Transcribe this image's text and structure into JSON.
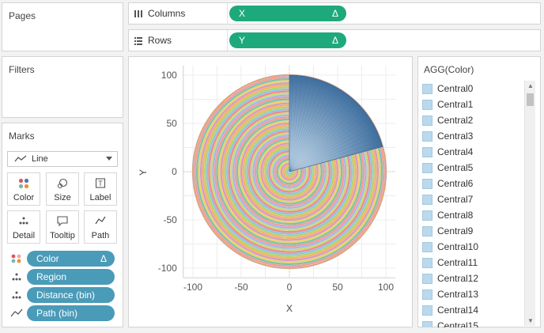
{
  "panels": {
    "pages_title": "Pages",
    "filters_title": "Filters",
    "marks_title": "Marks"
  },
  "shelves": {
    "columns": {
      "label": "Columns",
      "pill": "X",
      "pill_icon": "Δ"
    },
    "rows": {
      "label": "Rows",
      "pill": "Y",
      "pill_icon": "Δ"
    }
  },
  "marks": {
    "mark_type": "Line",
    "buttons": [
      "Color",
      "Size",
      "Label",
      "Detail",
      "Tooltip",
      "Path"
    ],
    "pills": [
      {
        "kind": "color",
        "label": "Color",
        "icon": "Δ",
        "color": "#4a9bb8"
      },
      {
        "kind": "detail",
        "label": "Region",
        "icon": "",
        "color": "#4a9bb8"
      },
      {
        "kind": "detail",
        "label": "Distance (bin)",
        "icon": "",
        "color": "#4a9bb8"
      },
      {
        "kind": "path",
        "label": "Path (bin)",
        "icon": "",
        "color": "#4a9bb8"
      }
    ]
  },
  "legend": {
    "title": "AGG(Color)",
    "items": [
      "Central0",
      "Central1",
      "Central2",
      "Central3",
      "Central4",
      "Central5",
      "Central6",
      "Central7",
      "Central8",
      "Central9",
      "Central10",
      "Central11",
      "Central12",
      "Central13",
      "Central14",
      "Central15"
    ]
  },
  "chart_data": {
    "type": "line",
    "description_kind": "polar spiral of concentric rings",
    "xlabel": "X",
    "ylabel": "Y",
    "xlim": [
      -110,
      110
    ],
    "ylim": [
      -110,
      110
    ],
    "x_ticks": [
      -100,
      -50,
      0,
      50,
      100
    ],
    "y_ticks": [
      100,
      50,
      0,
      -50,
      -100
    ],
    "radius_max": 100,
    "ring_colors": [
      "#f08a8e",
      "#8fc3e6",
      "#b5d36b",
      "#f4b26a",
      "#d79ac4",
      "#e8d36a",
      "#7fc3a9",
      "#f59a9a",
      "#a6b6e8",
      "#c6dc7a"
    ],
    "wedge_color": "#3f6f9f",
    "outer_ring_color": "#f2a25a",
    "grid": true
  }
}
